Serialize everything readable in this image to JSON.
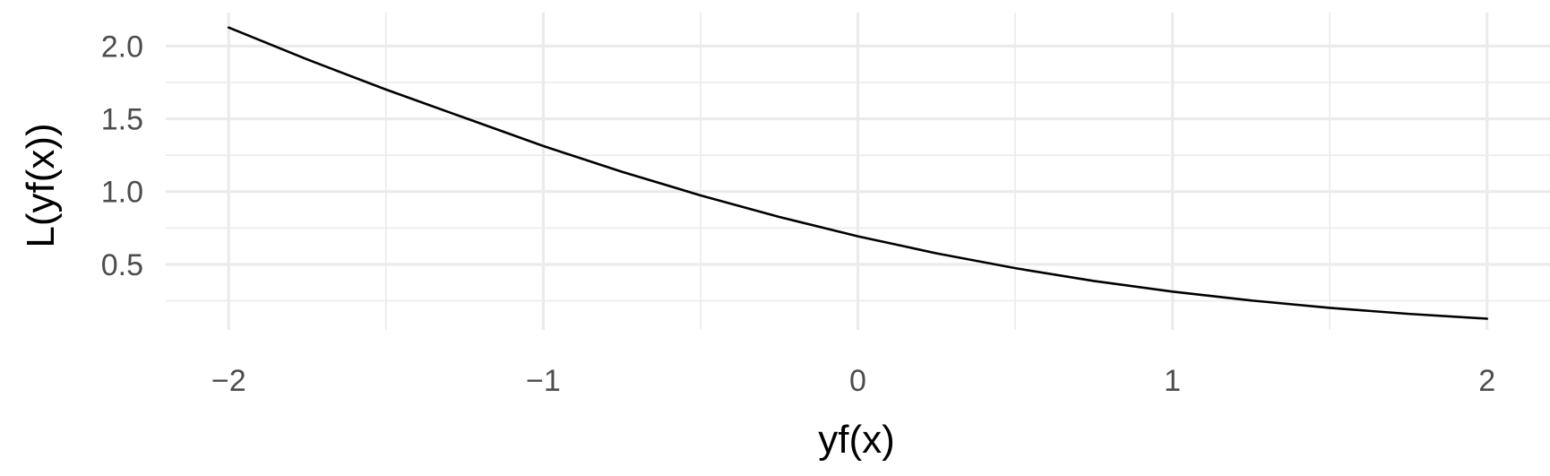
{
  "chart_data": {
    "type": "line",
    "xlabel": "yf(x)",
    "ylabel": "L(yf(x))",
    "x_ticks": [
      -2,
      -1,
      0,
      1,
      2
    ],
    "x_tick_labels": [
      "−2",
      "−1",
      "0",
      "1",
      "2"
    ],
    "x_minor_ticks": [
      -1.5,
      -0.5,
      0.5,
      1.5
    ],
    "y_ticks": [
      0.5,
      1.0,
      1.5,
      2.0
    ],
    "y_tick_labels": [
      "0.5",
      "1.0",
      "1.5",
      "2.0"
    ],
    "y_minor_ticks": [
      0.25,
      0.75,
      1.25,
      1.75
    ],
    "xlim": [
      -2.2,
      2.2
    ],
    "ylim": [
      0.05,
      2.23
    ],
    "grid": true,
    "legend": "none",
    "line_color": "#000000",
    "grid_color": "#ebebeb",
    "series": [
      {
        "x": [
          -2.0,
          -1.75,
          -1.5,
          -1.25,
          -1.0,
          -0.75,
          -0.5,
          -0.25,
          0.0,
          0.25,
          0.5,
          0.75,
          1.0,
          1.25,
          1.5,
          1.75,
          2.0
        ],
        "y": [
          2.127,
          1.908,
          1.701,
          1.507,
          1.313,
          1.136,
          0.974,
          0.826,
          0.693,
          0.576,
          0.474,
          0.386,
          0.313,
          0.252,
          0.201,
          0.16,
          0.127
        ]
      }
    ]
  }
}
